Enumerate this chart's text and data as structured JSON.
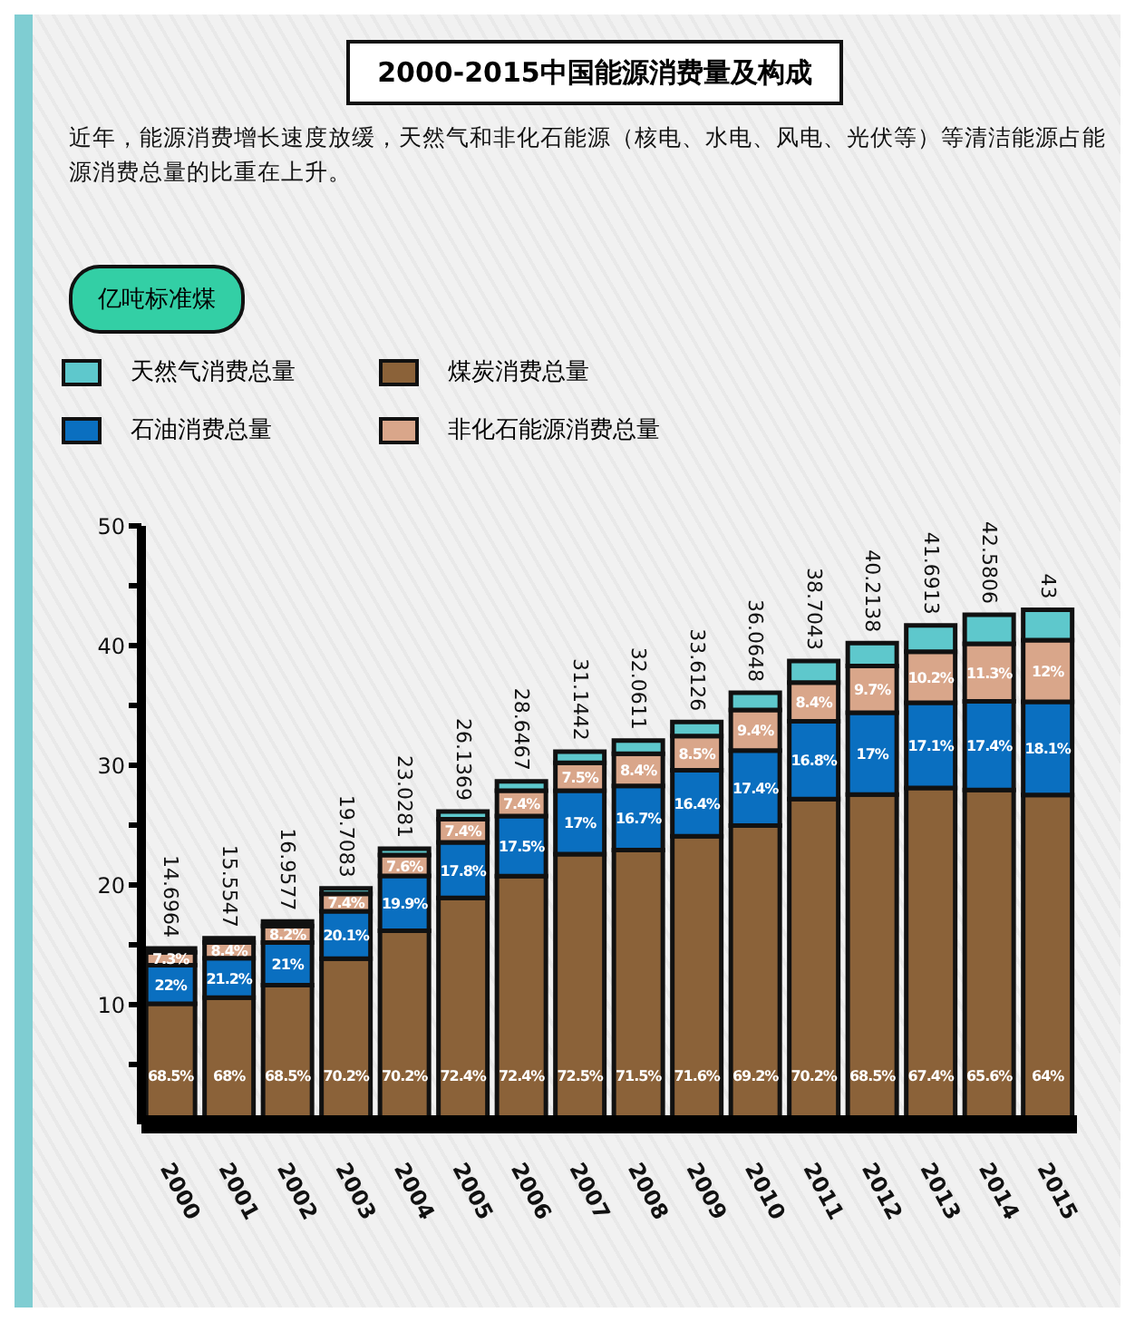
{
  "chart_data": {
    "type": "bar",
    "title": "2000-2015中国能源消费量及构成",
    "subtitle": "近年，能源消费增长速度放缓，天然气和非化石能源（核电、水电、风电、光伏等）等清洁能源占能源消费总量的比重在上升。",
    "stacked": true,
    "legend": "top left",
    "grid": false,
    "categories": [
      "2000",
      "2001",
      "2002",
      "2003",
      "2004",
      "2005",
      "2006",
      "2007",
      "2008",
      "2009",
      "2010",
      "2011",
      "2012",
      "2013",
      "2014",
      "2015"
    ],
    "ylim": [
      0,
      50
    ],
    "yticks": [
      10,
      20,
      30,
      40,
      50,
      {
        "value": 5,
        "label": null
      },
      {
        "value": 15,
        "label": null
      },
      {
        "value": 25,
        "label": null
      },
      {
        "value": 35,
        "label": null
      },
      {
        "value": 45,
        "label": null
      }
    ],
    "series": [
      {
        "name": "煤炭消费总量",
        "color": "#8b6239",
        "values": [
          10.07,
          10.58,
          11.62,
          13.84,
          16.17,
          18.92,
          20.74,
          22.58,
          22.92,
          24.07,
          24.96,
          27.17,
          27.55,
          28.1,
          27.93,
          27.52
        ]
      },
      {
        "name": "石油消费总量",
        "color": "#0a6fc0",
        "values": [
          3.23,
          3.3,
          3.56,
          3.96,
          4.58,
          4.65,
          5.01,
          5.29,
          5.35,
          5.51,
          6.28,
          6.5,
          6.84,
          7.13,
          7.41,
          7.78
        ]
      },
      {
        "name": "非化石能源消费总量",
        "color": "#d9a68a",
        "values": [
          1.07,
          1.31,
          1.39,
          1.46,
          1.75,
          1.93,
          2.12,
          2.34,
          2.69,
          2.86,
          3.39,
          3.25,
          3.9,
          4.25,
          4.81,
          5.16
        ]
      },
      {
        "name": "天然气消费总量",
        "color": "#5ec8cc",
        "values": [
          0.3264,
          0.3647,
          0.3877,
          0.4483,
          0.5281,
          0.6369,
          0.7767,
          0.9342,
          1.1011,
          1.1726,
          1.4348,
          1.7843,
          1.9238,
          2.2113,
          2.4306,
          2.54
        ]
      }
    ],
    "totals": [
      "14.6964",
      "15.5547",
      "16.9577",
      "19.7083",
      "23.0281",
      "26.1369",
      "28.6467",
      "31.1442",
      "32.0611",
      "33.6126",
      "36.0648",
      "38.7043",
      "40.2138",
      "41.6913",
      "42.5806",
      "43"
    ],
    "annotations": [
      "亿吨标准煤",
      "68.5%",
      "68%",
      "68.5%",
      "70.2%",
      "70.2%",
      "72.4%",
      "72.4%",
      "72.5%",
      "71.5%",
      "71.6%",
      "69.2%",
      "70.2%",
      "68.5%",
      "67.4%",
      "65.6%",
      "64%",
      "22%",
      "21.2%",
      "21%",
      "20.1%",
      "19.9%",
      "17.8%",
      "17.5%",
      "17%",
      "16.7%",
      "16.4%",
      "17.4%",
      "16.8%",
      "17%",
      "17.1%",
      "17.4%",
      "18.1%",
      "7.3%",
      "8.4%",
      "8.2%",
      "7.4%",
      "7.6%",
      "7.4%",
      "7.4%",
      "7.5%",
      "8.4%",
      "8.5%",
      "9.4%",
      "8.4%",
      "9.7%",
      "10.2%",
      "11.3%",
      "12%"
    ]
  }
}
